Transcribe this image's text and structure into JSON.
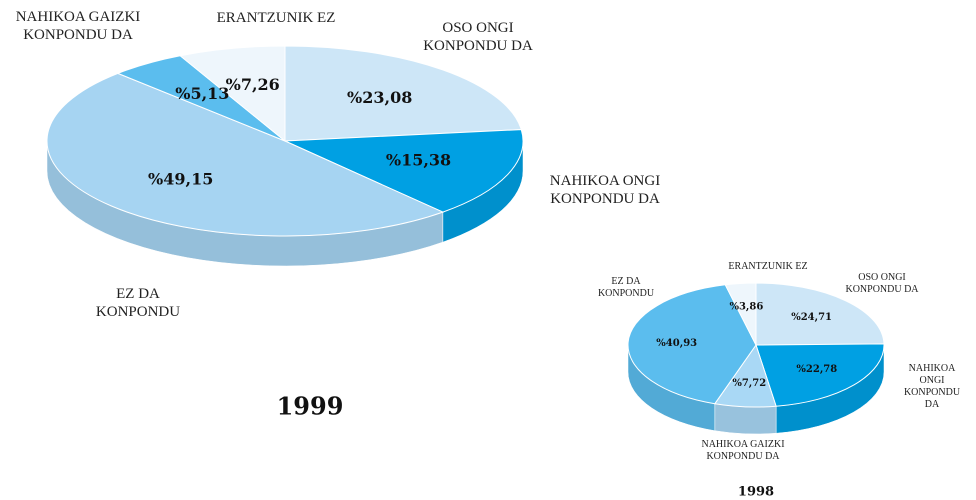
{
  "chart_data": [
    {
      "type": "pie",
      "title": "1999",
      "categories": [
        "OSO ONGI\nKONPONDU DA",
        "NAHIKOA ONGI\nKONPONDU DA",
        "EZ DA\nKONPONDU",
        "NAHIKOA GAIZKI\nKONPONDU DA",
        "ERANTZUNIK EZ"
      ],
      "values": [
        23.08,
        15.38,
        49.15,
        5.13,
        7.26
      ],
      "value_labels": [
        "%23,08",
        "%15,38",
        "%49,15",
        "%5,13",
        "%7,26"
      ],
      "colors": [
        "#cde6f7",
        "#00a0e3",
        "#a6d4f2",
        "#5bbdee",
        "#eef6fc"
      ]
    },
    {
      "type": "pie",
      "title": "1998",
      "categories": [
        "OSO ONGI\nKONPONDU DA",
        "NAHIKOA ONGI\nKONPONDU DA",
        "NAHIKOA GAIZKI\nKONPONDU DA",
        "EZ DA\nKONPONDU",
        "ERANTZUNIK EZ"
      ],
      "values": [
        24.71,
        22.78,
        7.72,
        40.93,
        3.86
      ],
      "value_labels": [
        "%24,71",
        "%22,78",
        "%7,72",
        "%40,93",
        "%3,86"
      ],
      "colors": [
        "#cde6f7",
        "#00a0e3",
        "#a9d8f5",
        "#5bbdee",
        "#eef6fc"
      ]
    }
  ]
}
